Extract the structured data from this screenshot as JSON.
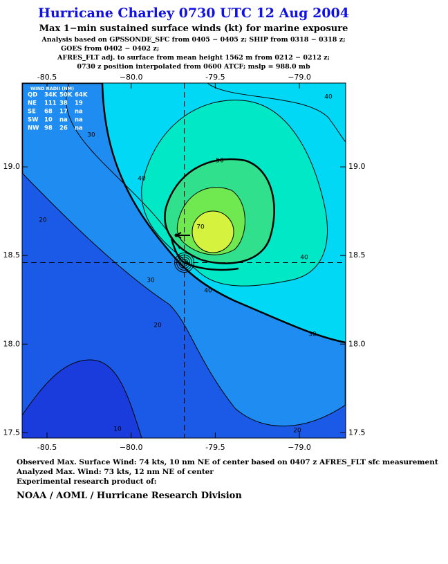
{
  "header": {
    "title": "Hurricane Charley 0730 UTC 12 Aug 2004",
    "subtitle": "Max 1−min sustained surface winds (kt) for marine exposure",
    "notes": [
      "Analysis based on  GPSSONDE_SFC from 0405 − 0405 z;  SHIP from 0318 − 0318 z;",
      "GOES from 0402 − 0402 z;",
      "AFRES_FLT adj. to surface from mean height 1562 m from 0212 − 0212 z;",
      "0730 z position interpolated from 0600 ATCF; mslp = 988.0 mb"
    ]
  },
  "map": {
    "xlim": [
      -80.648,
      -78.725
    ],
    "ylim": [
      17.47,
      19.473
    ],
    "xticks": [
      -80.5,
      {
        "value": -80.0,
        "label": "−80.0"
      },
      -79.5,
      {
        "value": -79.0,
        "label": "−79.0"
      }
    ],
    "yticks": [
      {
        "value": 17.5,
        "label": "17.5"
      },
      {
        "value": 18.0,
        "label": "18.0"
      },
      {
        "value": 18.5,
        "label": "18.5"
      },
      {
        "value": 19.0,
        "label": "19.0"
      }
    ],
    "center": {
      "lon": -79.684,
      "lat": 18.46
    },
    "contour_labels": [
      "40",
      "30",
      "40",
      "50",
      "20",
      "70",
      "30",
      "40",
      "40",
      "20",
      "30",
      "10",
      "20"
    ],
    "wind_radii": {
      "title": "WIND RADII (NM)",
      "columns": [
        "QD",
        "34K",
        "50K",
        "64K"
      ],
      "rows": [
        [
          "NE",
          "111",
          "38",
          "19"
        ],
        [
          "SE",
          "68",
          "17",
          "na"
        ],
        [
          "SW",
          "10",
          "na",
          "na"
        ],
        [
          "NW",
          "98",
          "26",
          "na"
        ]
      ]
    }
  },
  "footer": {
    "lines": [
      "Observed Max. Surface Wind: 74 kts, 10 nm NE of center based on 0407 z AFRES_FLT sfc measurement",
      "Analyzed Max. Wind: 73 kts, 12 nm NE of center",
      "Experimental research product of:"
    ],
    "org": "NOAA / AOML / Hurricane Research Division"
  }
}
